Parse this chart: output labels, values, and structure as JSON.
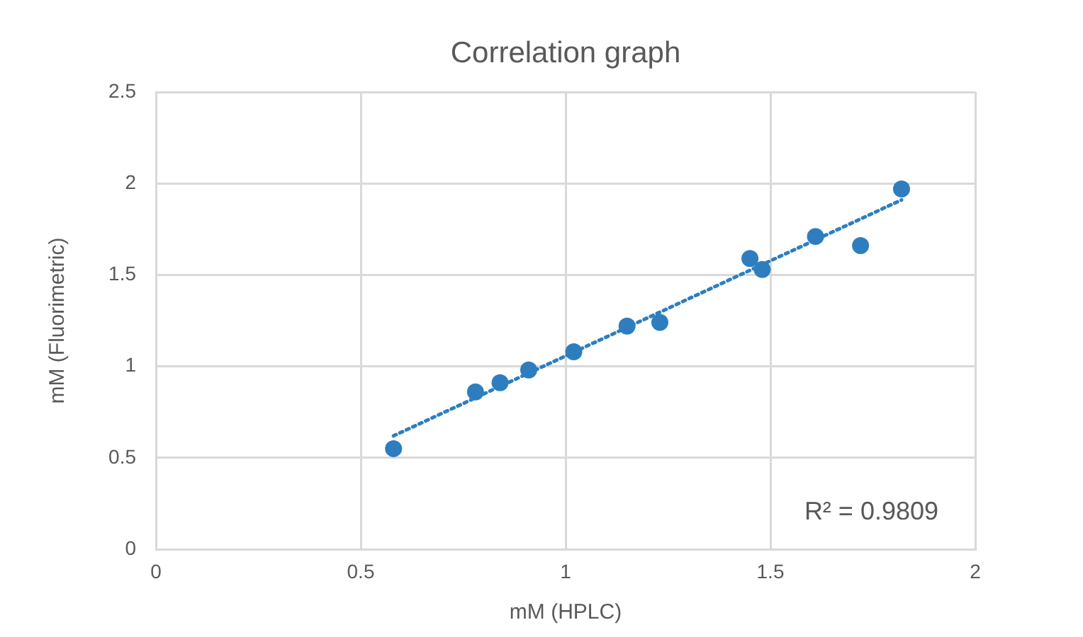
{
  "chart_data": {
    "type": "scatter",
    "title": "Correlation graph",
    "xlabel": "mM (HPLC)",
    "ylabel": "mM (Fluorimetric)",
    "xlim": [
      0,
      2
    ],
    "xticks": [
      0,
      0.5,
      1,
      1.5,
      2
    ],
    "ylim": [
      0,
      2.5
    ],
    "yticks": [
      0,
      0.5,
      1,
      1.5,
      2,
      2.5
    ],
    "grid": true,
    "legend": false,
    "marker": "circle",
    "annotations": [
      "R² = 0.9809"
    ],
    "series": [
      {
        "type": "scatter",
        "color": "#2e7ebf",
        "x": [
          0.58,
          0.78,
          0.84,
          0.91,
          1.02,
          1.15,
          1.23,
          1.45,
          1.48,
          1.61,
          1.72,
          1.82
        ],
        "values": [
          0.55,
          0.86,
          0.91,
          0.98,
          1.08,
          1.22,
          1.24,
          1.59,
          1.53,
          1.71,
          1.66,
          1.97
        ]
      },
      {
        "type": "line",
        "color": "#2e7ebf",
        "line_style": "dotted",
        "marker": "none",
        "x": [
          0.58,
          1.82
        ],
        "values": [
          0.62,
          1.91
        ]
      }
    ]
  }
}
